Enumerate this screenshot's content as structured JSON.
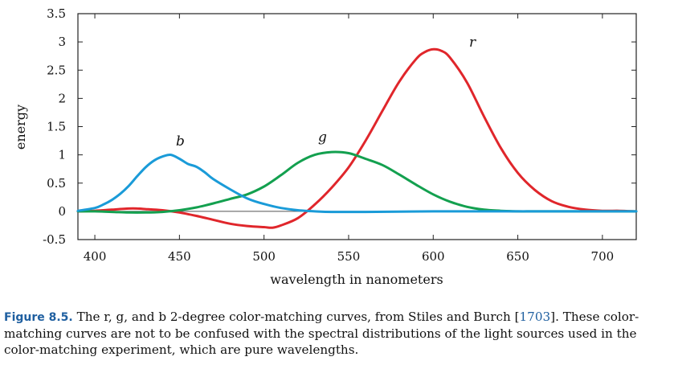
{
  "chart_data": {
    "type": "line",
    "xlabel": "wavelength in nanometers",
    "ylabel": "energy",
    "xlim": [
      390,
      720
    ],
    "ylim": [
      -0.5,
      3.5
    ],
    "x_ticks": [
      400,
      450,
      500,
      550,
      600,
      650,
      700
    ],
    "y_ticks": [
      -0.5,
      0,
      0.5,
      1,
      1.5,
      2,
      2.5,
      3,
      3.5
    ],
    "y_tick_labels": [
      "-0.5",
      "0",
      "0.5",
      "1",
      "1.5",
      "2",
      "2.5",
      "3",
      "3.5"
    ],
    "zero_line": true,
    "grid": false,
    "series": [
      {
        "name": "r",
        "color": "#e0262b",
        "x": [
          390,
          400,
          410,
          420,
          425,
          430,
          440,
          450,
          460,
          470,
          480,
          490,
          500,
          505,
          510,
          520,
          530,
          540,
          550,
          560,
          570,
          580,
          590,
          595,
          600,
          605,
          610,
          620,
          630,
          640,
          650,
          660,
          670,
          680,
          690,
          700,
          710,
          720
        ],
        "values": [
          0.0,
          0.01,
          0.03,
          0.05,
          0.05,
          0.04,
          0.02,
          -0.02,
          -0.08,
          -0.15,
          -0.22,
          -0.26,
          -0.28,
          -0.29,
          -0.25,
          -0.12,
          0.12,
          0.42,
          0.78,
          1.25,
          1.78,
          2.3,
          2.7,
          2.82,
          2.87,
          2.84,
          2.72,
          2.28,
          1.68,
          1.12,
          0.68,
          0.38,
          0.18,
          0.08,
          0.03,
          0.01,
          0.01,
          0.0
        ]
      },
      {
        "name": "g",
        "color": "#13a04f",
        "x": [
          390,
          400,
          410,
          420,
          430,
          440,
          450,
          460,
          470,
          480,
          490,
          500,
          510,
          520,
          530,
          540,
          550,
          560,
          570,
          580,
          590,
          600,
          610,
          620,
          630,
          640,
          650,
          660,
          680,
          700,
          720
        ],
        "values": [
          0.0,
          0.0,
          -0.01,
          -0.02,
          -0.02,
          -0.01,
          0.02,
          0.07,
          0.14,
          0.22,
          0.3,
          0.44,
          0.64,
          0.86,
          1.0,
          1.05,
          1.03,
          0.93,
          0.82,
          0.65,
          0.47,
          0.3,
          0.17,
          0.08,
          0.03,
          0.01,
          0.0,
          0.0,
          0.0,
          0.0,
          0.0
        ]
      },
      {
        "name": "b",
        "color": "#1a9bd8",
        "x": [
          390,
          400,
          405,
          410,
          415,
          420,
          425,
          430,
          435,
          440,
          445,
          450,
          455,
          460,
          465,
          470,
          480,
          490,
          500,
          510,
          520,
          530,
          540,
          560,
          600,
          650,
          720
        ],
        "values": [
          0.01,
          0.06,
          0.12,
          0.2,
          0.31,
          0.45,
          0.62,
          0.78,
          0.9,
          0.97,
          1.0,
          0.93,
          0.84,
          0.79,
          0.69,
          0.57,
          0.39,
          0.23,
          0.13,
          0.06,
          0.02,
          0.0,
          -0.01,
          -0.01,
          0.0,
          0.0,
          0.0
        ]
      }
    ]
  },
  "curve_labels": {
    "r": "r",
    "g": "g",
    "b": "b"
  },
  "caption": {
    "figure_label": "Figure 8.5.",
    "text_before_ref": "The r, g, and b 2-degree color-matching curves, from Stiles and Burch [",
    "ref": "1703",
    "text_after_ref": "]. These color-matching curves are not to be confused with the spectral distributions of the light sources used in the color-matching experiment, which are pure wavelengths."
  }
}
